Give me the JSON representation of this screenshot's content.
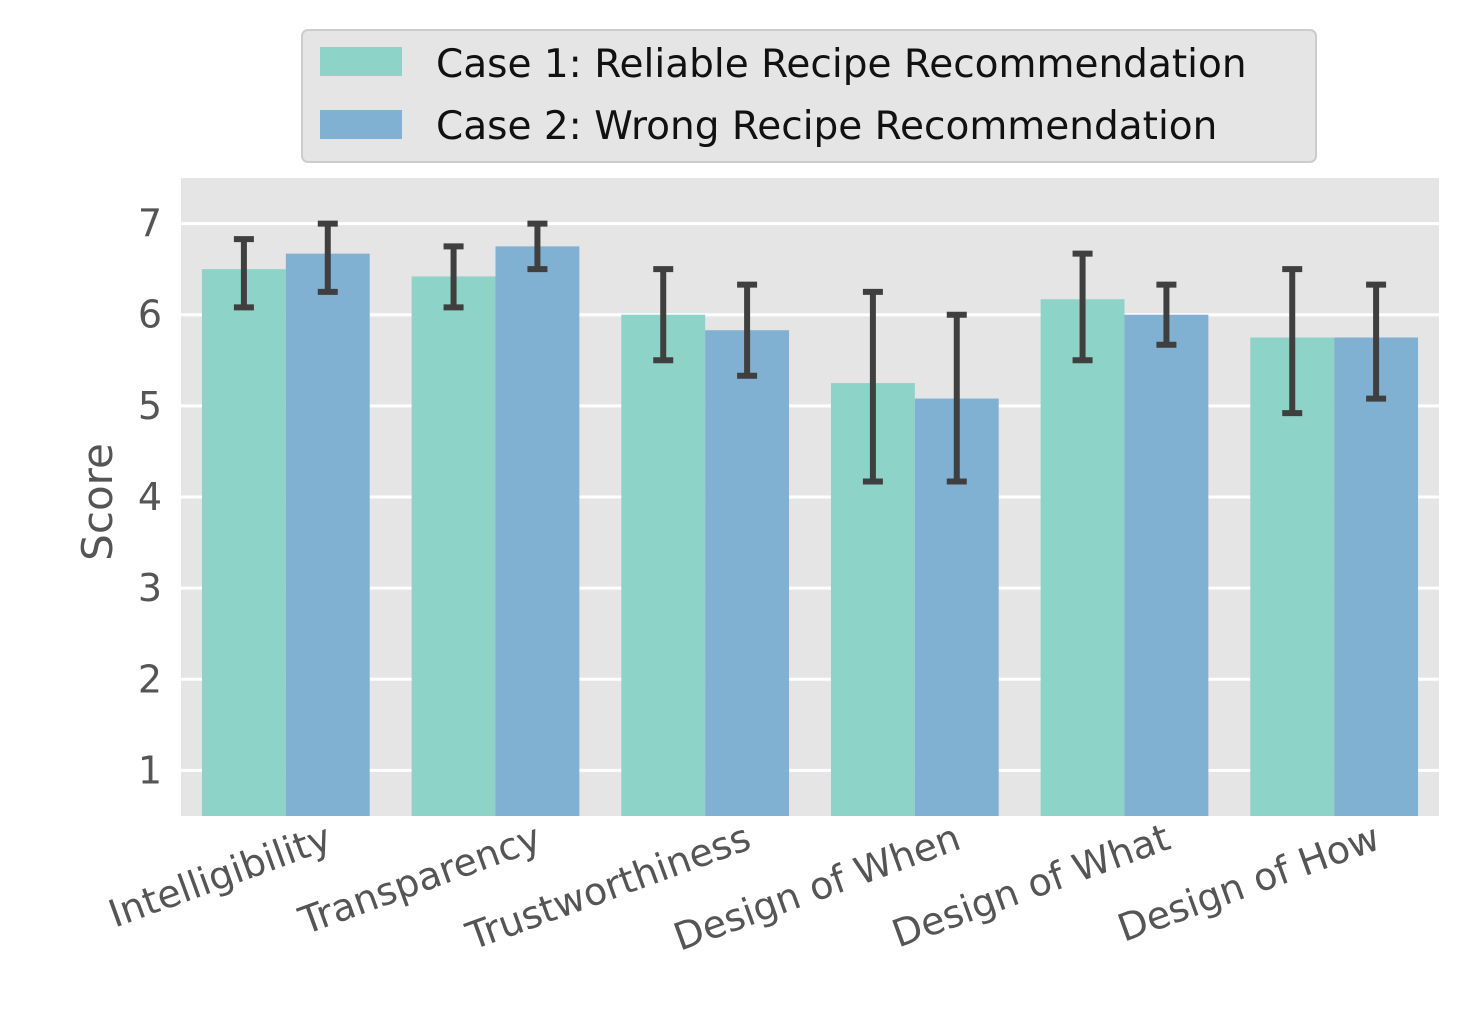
{
  "chart_data": {
    "type": "bar",
    "title": "",
    "xlabel": "",
    "ylabel": "Score",
    "ylim": [
      0.5,
      7.5
    ],
    "yticks": [
      1,
      2,
      3,
      4,
      5,
      6,
      7
    ],
    "grid": true,
    "legend_position": "top-center",
    "categories": [
      "Intelligibility",
      "Transparency",
      "Trustworthiness",
      "Design of When",
      "Design of What",
      "Design of How"
    ],
    "series": [
      {
        "name": "Case 1: Reliable Recipe Recommendation",
        "color": "#8dd3c7",
        "values": [
          6.5,
          6.42,
          6.0,
          5.25,
          6.17,
          5.75
        ],
        "err_low": [
          6.08,
          6.08,
          5.5,
          4.17,
          5.5,
          4.92
        ],
        "err_high": [
          6.83,
          6.75,
          6.5,
          6.25,
          6.67,
          6.5
        ]
      },
      {
        "name": "Case 2: Wrong Recipe Recommendation",
        "color": "#80b1d3",
        "values": [
          6.67,
          6.75,
          5.83,
          5.08,
          6.0,
          5.75
        ],
        "err_low": [
          6.25,
          6.5,
          5.33,
          4.17,
          5.67,
          5.08
        ],
        "err_high": [
          7.0,
          7.0,
          6.33,
          6.0,
          6.33,
          6.33
        ]
      }
    ],
    "colors": {
      "plot_background": "#e5e5e5",
      "grid": "#ffffff",
      "error_bar": "#3f3f3f",
      "legend_background": "#e5e5e5",
      "legend_border": "#cccccc"
    }
  }
}
